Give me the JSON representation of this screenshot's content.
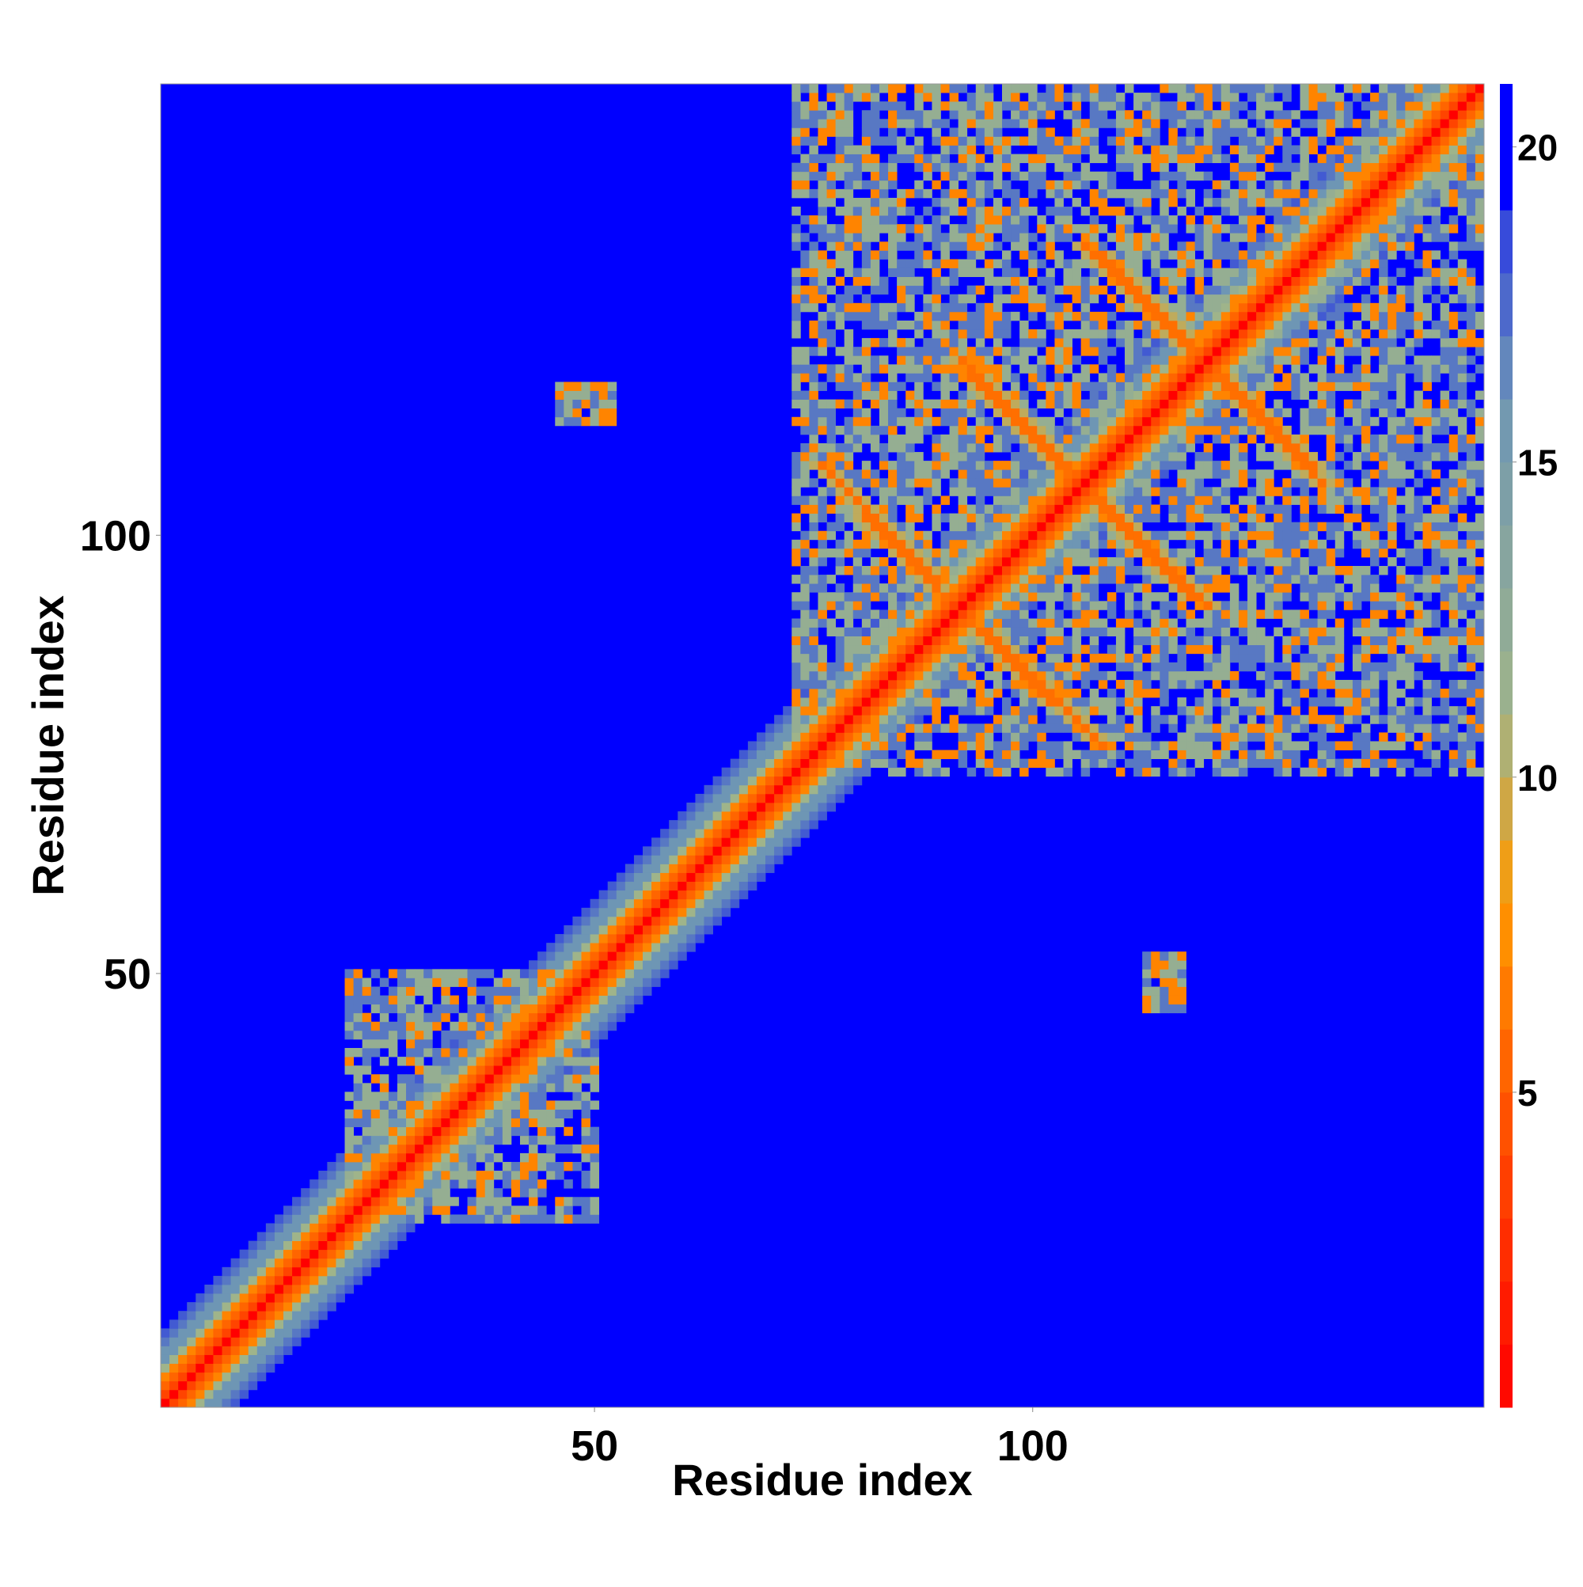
{
  "chart_data": {
    "type": "heatmap",
    "title": "",
    "xlabel": "Residue index",
    "ylabel": "Residue index",
    "x_range": [
      1,
      151
    ],
    "y_range": [
      1,
      151
    ],
    "x_ticks": [
      50,
      100
    ],
    "y_ticks": [
      50,
      100
    ],
    "colorbar": {
      "range": [
        0,
        21
      ],
      "ticks": [
        5,
        10,
        15,
        20
      ],
      "colors": [
        "#ff0000",
        "#ff5a00",
        "#ff9900",
        "#9fb48a",
        "#6e96b4",
        "#0000ff"
      ],
      "stops": [
        0,
        5,
        8,
        11,
        16,
        21
      ],
      "saturation_color": "#0000ff"
    },
    "matrix_description_values": {
      "diagonal_distance": 0,
      "near_diagonal_band_width": [
        1,
        2,
        3,
        4,
        6
      ],
      "band_values": [
        3.8,
        5.5,
        7.0,
        11.0,
        16.0
      ],
      "background_value": 21
    },
    "contact_regions": [
      {
        "x": [
          22,
          50
        ],
        "y": [
          22,
          50
        ],
        "value": 16
      },
      {
        "x": [
          73,
          151
        ],
        "y": [
          73,
          151
        ],
        "value": 16
      },
      {
        "x": [
          46,
          52
        ],
        "y": [
          113,
          117
        ],
        "value": 15
      },
      {
        "x": [
          113,
          117
        ],
        "y": [
          46,
          52
        ],
        "value": 15
      }
    ],
    "antiparallel_strands": [
      {
        "start": [
          81,
          102
        ],
        "end": [
          108,
          76
        ],
        "value": 6.0
      },
      {
        "start": [
          93,
          118
        ],
        "end": [
          120,
          92
        ],
        "value": 6.0
      },
      {
        "start": [
          108,
          132
        ],
        "end": [
          133,
          106
        ],
        "value": 6.0
      }
    ]
  }
}
